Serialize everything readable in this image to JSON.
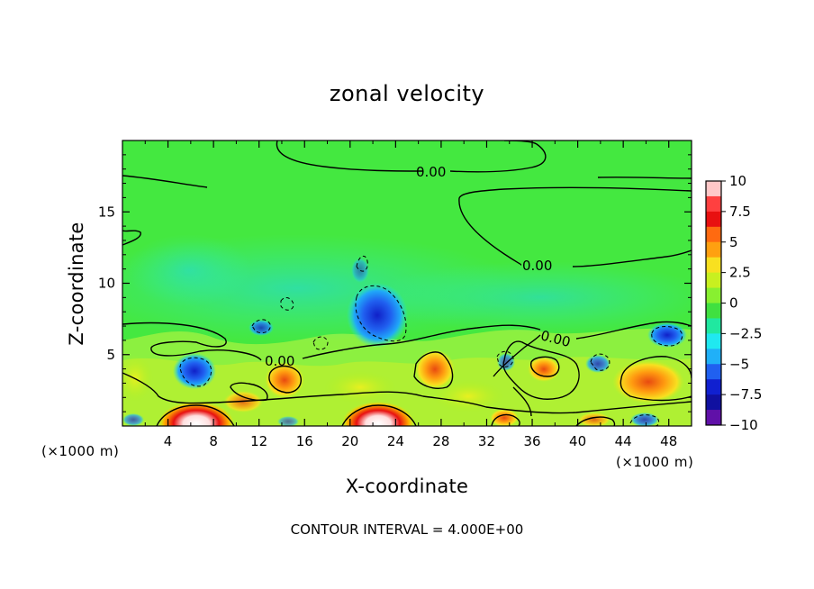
{
  "chart_data": {
    "type": "heatmap",
    "title": "zonal velocity",
    "xlabel": "X-coordinate",
    "ylabel": "Z-coordinate",
    "x_unit_label": "(×1000 m)",
    "x_unit_label_right": "(×1000 m)",
    "footer": "CONTOUR INTERVAL = 4.000E+00",
    "xlim": [
      0,
      50
    ],
    "ylim": [
      0,
      20
    ],
    "x_ticks": [
      4,
      8,
      12,
      16,
      20,
      24,
      28,
      32,
      36,
      40,
      44,
      48
    ],
    "x_tick_labels": [
      "4",
      "8",
      "12",
      "16",
      "20",
      "24",
      "28",
      "32",
      "36",
      "40",
      "44",
      "48"
    ],
    "y_ticks": [
      5,
      10,
      15
    ],
    "y_tick_labels": [
      "5",
      "10",
      "15"
    ],
    "colorbar": {
      "range": [
        -10,
        10
      ],
      "ticks": [
        10,
        7.5,
        5,
        2.5,
        0,
        -2.5,
        -5,
        -7.5,
        -10
      ],
      "tick_labels": [
        "10",
        "7.5",
        "5",
        "2.5",
        "0",
        "−2.5",
        "−5",
        "−7.5",
        "−10"
      ]
    },
    "contour_labels": [
      {
        "text": "0.00",
        "x": 27.5,
        "z": 17.9
      },
      {
        "text": "0.00",
        "x": 38.5,
        "z": 11.2
      },
      {
        "text": "0.00",
        "x": 38.7,
        "z": 6.2
      },
      {
        "text": "0.00",
        "x": 14.0,
        "z": 4.7
      }
    ],
    "features": [
      {
        "kind": "max",
        "x": 6.5,
        "z": 0.4,
        "value": 10
      },
      {
        "kind": "max",
        "x": 22.5,
        "z": 0.4,
        "value": 10
      },
      {
        "kind": "min",
        "x": 22.5,
        "z": 7.3,
        "value": -6.5
      },
      {
        "kind": "min",
        "x": 7.0,
        "z": 3.6,
        "value": -5
      },
      {
        "kind": "min",
        "x": 46.8,
        "z": 6.2,
        "value": -5
      },
      {
        "kind": "max",
        "x": 46.0,
        "z": 3.0,
        "value": 5
      },
      {
        "kind": "max",
        "x": 28.0,
        "z": 4.0,
        "value": 4
      },
      {
        "kind": "max",
        "x": 14.0,
        "z": 3.2,
        "value": 4
      }
    ]
  }
}
